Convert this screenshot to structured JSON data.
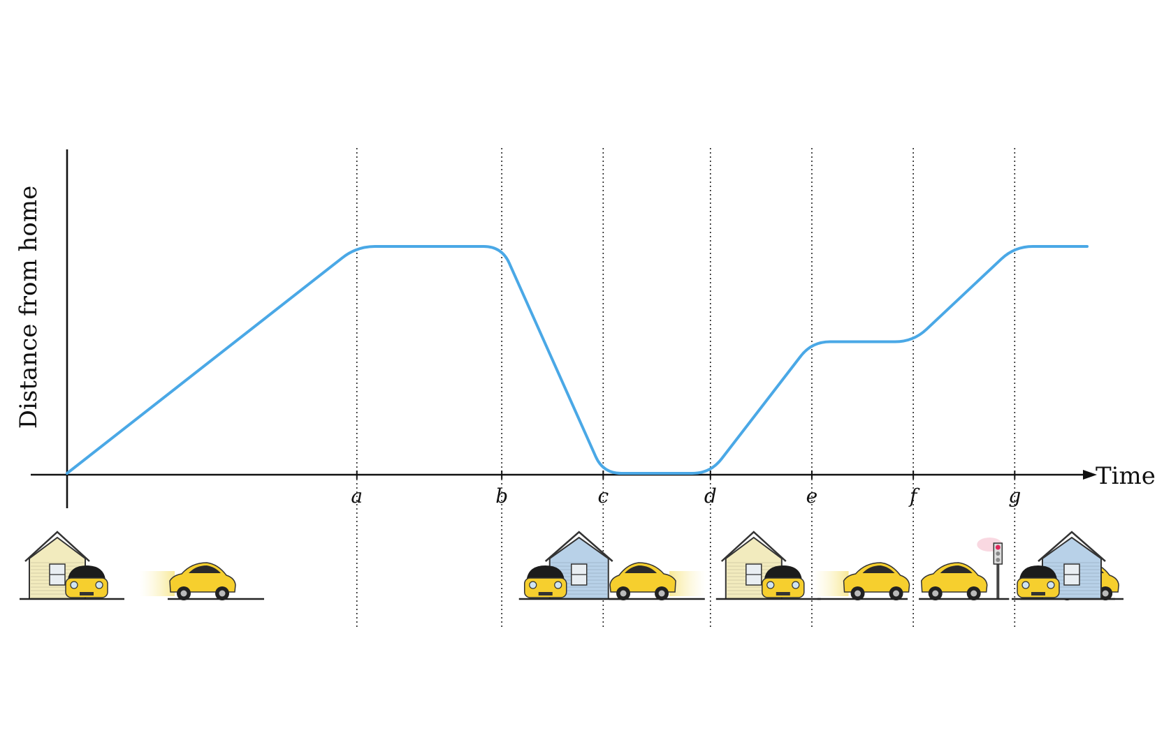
{
  "chart_data": {
    "type": "line",
    "title": "",
    "xlabel": "Time",
    "ylabel": "Distance from home",
    "tick_labels": [
      "a",
      "b",
      "c",
      "d",
      "e",
      "f",
      "g"
    ],
    "series": [
      {
        "color": "#4aa8e6",
        "points": [
          {
            "x": 0,
            "y": 0
          },
          {
            "x": 1,
            "y": 1
          },
          {
            "x": 1.5,
            "y": 1
          },
          {
            "x": 1.85,
            "y": 0
          },
          {
            "x": 2.22,
            "y": 0
          },
          {
            "x": 2.57,
            "y": 0.58
          },
          {
            "x": 2.92,
            "y": 0.58
          },
          {
            "x": 3.27,
            "y": 1
          },
          {
            "x": 3.52,
            "y": 1
          }
        ]
      }
    ],
    "tick_positions": [
      1,
      1.5,
      1.85,
      2.22,
      2.57,
      2.92,
      3.27
    ],
    "xlim": [
      0,
      3.52
    ],
    "ylim": [
      0,
      1
    ],
    "grid": false,
    "legend": "none",
    "scenes": [
      "home-car-parked",
      "car-driving-right",
      "car-at-blue-house",
      "car-driving-left",
      "home-car-parked",
      "car-driving-right",
      "car-at-traffic-light",
      "car-driving-right",
      "car-at-blue-house"
    ],
    "colors": {
      "car_body": "#f6cf2e",
      "house_yellow": "#f2ebbe",
      "house_blue": "#b8d1e8",
      "traffic_light_red": "#e0275a"
    }
  }
}
